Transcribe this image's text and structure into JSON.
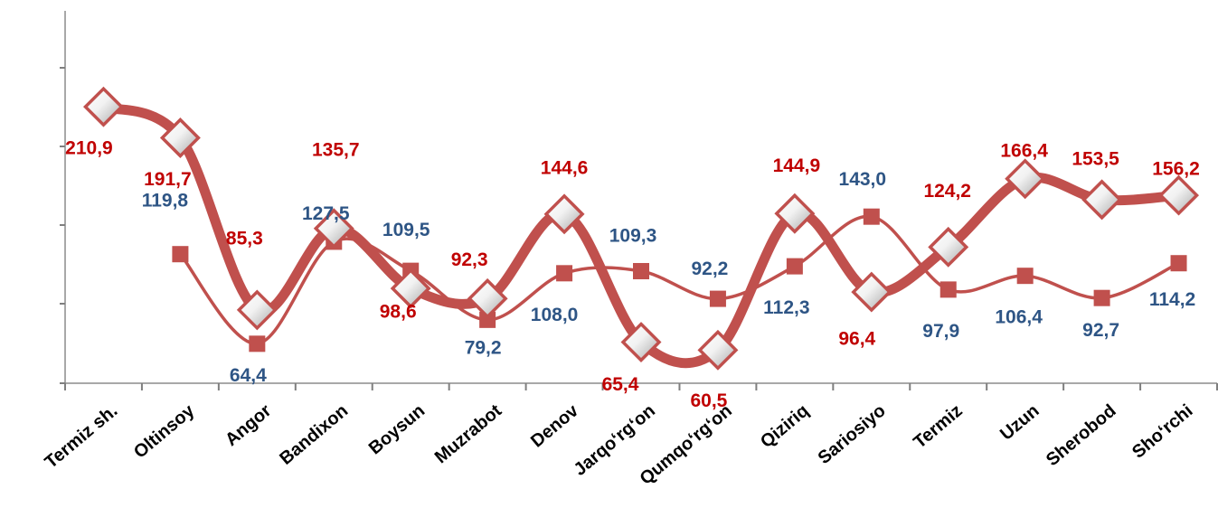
{
  "chart_data": {
    "type": "line",
    "title": "",
    "xlabel": "",
    "ylabel": "",
    "ylim": [
      40,
      230
    ],
    "grid": false,
    "legend": "none",
    "categories": [
      "Termiz sh.",
      "Oltinsoy",
      "Angor",
      "Bandixon",
      "Boysun",
      "Muzrabot",
      "Denov",
      "Jarqo‘rg‘on",
      "Qumqo‘rg‘on",
      "Qiziriq",
      "Sariosiyo",
      "Termiz",
      "Uzun",
      "Sherobod",
      "Sho‘rchi"
    ],
    "series": [
      {
        "color": "#c0504d",
        "label_color": "#c00000",
        "marker": "diamond",
        "values": [
          210.9,
          191.7,
          85.3,
          135.7,
          98.6,
          92.3,
          144.6,
          65.4,
          60.5,
          144.9,
          96.4,
          124.2,
          166.4,
          153.5,
          156.2
        ],
        "labels": [
          "210,9",
          "191,7",
          "85,3",
          "135,7",
          "98,6",
          "92,3",
          "144,6",
          "65,4",
          "60,5",
          "144,9",
          "96,4",
          "124,2",
          "166,4",
          "153,5",
          "156,2"
        ]
      },
      {
        "color": "#c0504d",
        "label_color": "#2e5585",
        "marker": "square",
        "values": [
          null,
          119.8,
          64.4,
          127.5,
          109.5,
          79.2,
          108.0,
          109.3,
          92.2,
          112.3,
          143.0,
          97.9,
          106.4,
          92.7,
          114.2
        ],
        "labels": [
          null,
          "119,8",
          "64,4",
          "127,5",
          "109,5",
          "79,2",
          "108,0",
          "109,3",
          "92,2",
          "112,3",
          "143,0",
          "97,9",
          "106,4",
          "92,7",
          "114,2"
        ]
      }
    ]
  }
}
